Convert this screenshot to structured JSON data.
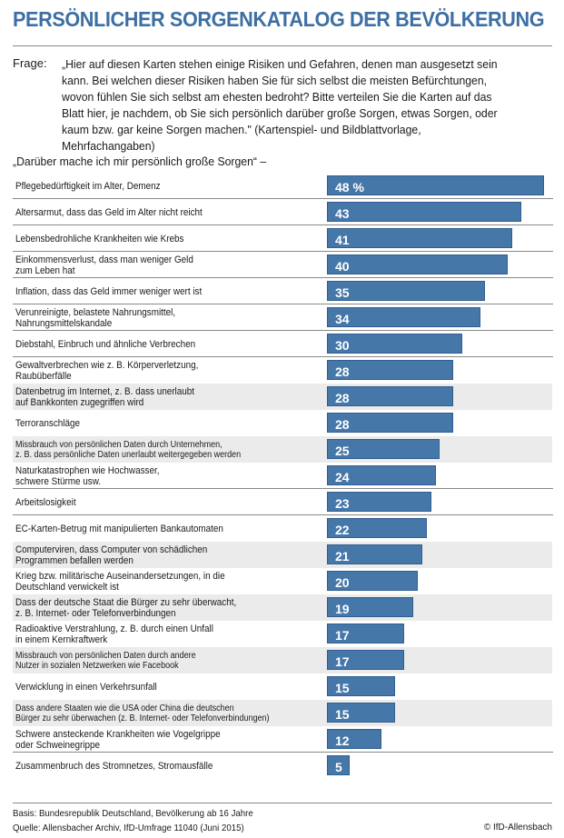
{
  "header": {
    "title": "PERSÖNLICHER SORGENKATALOG DER BEVÖLKERUNG",
    "question_label": "Frage:",
    "question_text": "„Hier auf diesen Karten stehen einige Risiken und Gefahren, denen man ausgesetzt sein kann. Bei welchen dieser Risiken haben Sie für sich selbst die meisten Befürchtungen, wovon fühlen Sie sich selbst am ehesten bedroht? Bitte verteilen Sie die Karten auf das Blatt hier, je nachdem, ob Sie sich persönlich darüber große Sorgen, etwas Sorgen, oder kaum bzw. gar keine Sorgen machen.\" (Kartenspiel- und Bildblattvorlage, Mehrfachangaben)"
  },
  "chart_data": {
    "type": "bar",
    "orientation": "horizontal",
    "title": "PERSÖNLICHER SORGENKATALOG DER BEVÖLKERUNG",
    "subtitle": "„Darüber mache ich mir persönlich große Sorgen“ –",
    "unit": "%",
    "xlabel": "",
    "ylabel": "",
    "xlim": [
      0,
      48
    ],
    "grid": false,
    "legend": "none",
    "categories": [
      "Pflegebedürftigkeit im Alter, Demenz",
      "Altersarmut, dass das Geld im Alter nicht reicht",
      "Lebensbedrohliche Krankheiten wie Krebs",
      "Einkommensverlust, dass man weniger Geld\nzum Leben hat",
      "Inflation, dass das Geld immer weniger wert ist",
      "Verunreinigte, belastete Nahrungsmittel,\nNahrungsmittelskandale",
      "Diebstahl, Einbruch und ähnliche Verbrechen",
      "Gewaltverbrechen wie z. B. Körperverletzung,\nRaubüberfälle",
      "Datenbetrug im Internet, z. B. dass unerlaubt\nauf Bankkonten zugegriffen wird",
      "Terroranschläge",
      "Missbrauch von persönlichen Daten durch Unternehmen,\nz. B. dass persönliche Daten unerlaubt weitergegeben werden",
      "Naturkatastrophen wie Hochwasser,\nschwere Stürme usw.",
      "Arbeitslosigkeit",
      "EC-Karten-Betrug mit manipulierten Bankautomaten",
      "Computerviren, dass Computer von schädlichen\nProgrammen befallen werden",
      "Krieg bzw. militärische Auseinandersetzungen, in die\nDeutschland verwickelt ist",
      "Dass der deutsche Staat die Bürger zu sehr überwacht,\nz. B. Internet- oder Telefonverbindungen",
      "Radioaktive Verstrahlung, z. B. durch einen Unfall\nin einem Kernkraftwerk",
      "Missbrauch von persönlichen Daten durch andere\nNutzer in sozialen Netzwerken wie Facebook",
      "Verwicklung in einen Verkehrsunfall",
      "Dass andere Staaten wie die USA oder China die deutschen\nBürger zu sehr überwachen (z. B. Internet- oder Telefonverbindungen)",
      "Schwere ansteckende Krankheiten wie Vogelgrippe\noder Schweinegrippe",
      "Zusammenbruch des Stromnetzes, Stromausfälle"
    ],
    "values": [
      48,
      43,
      41,
      40,
      35,
      34,
      30,
      28,
      28,
      28,
      25,
      24,
      23,
      22,
      21,
      20,
      19,
      17,
      17,
      15,
      15,
      12,
      5
    ],
    "value_labels": [
      "48 %",
      "43",
      "41",
      "40",
      "35",
      "34",
      "30",
      "28",
      "28",
      "28",
      "25",
      "24",
      "23",
      "22",
      "21",
      "20",
      "19",
      "17",
      "17",
      "15",
      "15",
      "12",
      "5"
    ],
    "bar_color": "#4677a9"
  },
  "row_styles": [
    "sep",
    "sep",
    "sep",
    "sep",
    "sep",
    "sep",
    "sep",
    "plain",
    "gray",
    "plain",
    "gray",
    "sep",
    "sep",
    "plain",
    "gray",
    "plain",
    "gray",
    "plain",
    "gray",
    "plain",
    "gray",
    "sep",
    "plain"
  ],
  "small_label_rows": [
    10,
    18,
    20
  ],
  "footer": {
    "basis": "Basis: Bundesrepublik Deutschland, Bevölkerung ab 16 Jahre",
    "source": "Quelle: Allensbacher Archiv, IfD-Umfrage 11040 (Juni 2015)",
    "copyright": "© IfD-Allensbach"
  },
  "colors": {
    "title": "#3d6fa3",
    "bar": "#4677a9",
    "row_band": "#ebebeb"
  }
}
